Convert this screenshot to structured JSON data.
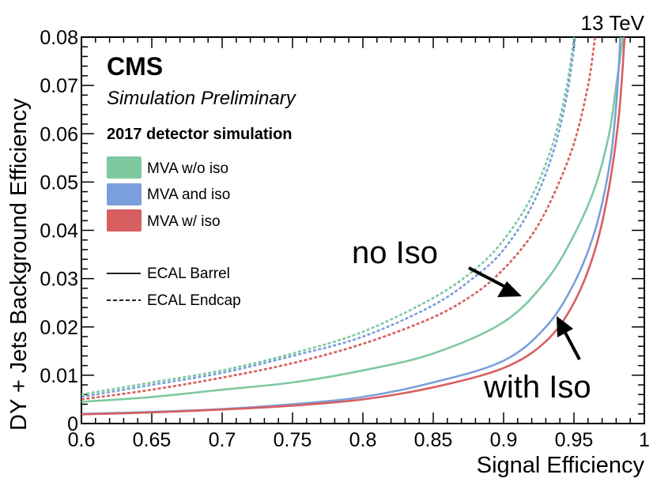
{
  "chart_data": {
    "type": "line",
    "energy_label": "13 TeV",
    "experiment": "CMS",
    "status": "Simulation Preliminary",
    "note": "2017 detector simulation",
    "xlabel": "Signal Efficiency",
    "ylabel": "DY + Jets Background Efficiency",
    "xlim": [
      0.6,
      1.0
    ],
    "ylim": [
      0,
      0.08
    ],
    "xticks": [
      "0.6",
      "0.65",
      "0.7",
      "0.75",
      "0.8",
      "0.85",
      "0.9",
      "0.95",
      "1"
    ],
    "yticks": [
      "0",
      "0.01",
      "0.02",
      "0.03",
      "0.04",
      "0.05",
      "0.06",
      "0.07",
      "0.08"
    ],
    "legend_placement": "top-left",
    "legend": {
      "colors": [
        {
          "label": "MVA w/o iso",
          "color": "#7ec9a0"
        },
        {
          "label": "MVA and iso",
          "color": "#7b9fdb"
        },
        {
          "label": "MVA w/ iso",
          "color": "#d75f5f"
        }
      ],
      "styles": [
        {
          "label": "ECAL Barrel",
          "dash": "solid"
        },
        {
          "label": "ECAL Endcap",
          "dash": "dashed"
        }
      ]
    },
    "annotations": [
      {
        "text": "no Iso",
        "x": 0.9,
        "y": 0.0335,
        "arrow_to": [
          0.92,
          0.0255
        ]
      },
      {
        "text": "with Iso",
        "x": 0.945,
        "y": 0.0075,
        "arrow_to": [
          0.945,
          0.0205
        ]
      }
    ],
    "series": [
      {
        "name": "MVA w/o iso",
        "region": "ECAL Barrel",
        "color": "#7ec9a0",
        "dash": "solid",
        "x": [
          0.6,
          0.65,
          0.7,
          0.75,
          0.8,
          0.85,
          0.9,
          0.93,
          0.95,
          0.965,
          0.975,
          0.98,
          0.985
        ],
        "y": [
          0.0045,
          0.0055,
          0.007,
          0.0085,
          0.011,
          0.0145,
          0.021,
          0.0295,
          0.039,
          0.049,
          0.06,
          0.07,
          0.08
        ]
      },
      {
        "name": "MVA and iso",
        "region": "ECAL Barrel",
        "color": "#7b9fdb",
        "dash": "solid",
        "x": [
          0.6,
          0.65,
          0.7,
          0.75,
          0.8,
          0.85,
          0.9,
          0.93,
          0.95,
          0.965,
          0.975,
          0.98,
          0.983
        ],
        "y": [
          0.002,
          0.0024,
          0.003,
          0.004,
          0.0055,
          0.0085,
          0.013,
          0.02,
          0.029,
          0.04,
          0.053,
          0.066,
          0.08
        ]
      },
      {
        "name": "MVA w/ iso",
        "region": "ECAL Barrel",
        "color": "#d75f5f",
        "dash": "solid",
        "x": [
          0.6,
          0.65,
          0.7,
          0.75,
          0.8,
          0.85,
          0.9,
          0.93,
          0.95,
          0.965,
          0.975,
          0.982,
          0.986
        ],
        "y": [
          0.0019,
          0.0023,
          0.0029,
          0.0037,
          0.005,
          0.0075,
          0.0115,
          0.017,
          0.025,
          0.036,
          0.049,
          0.064,
          0.08
        ]
      },
      {
        "name": "MVA w/o iso",
        "region": "ECAL Endcap",
        "color": "#7ec9a0",
        "dash": "dashed",
        "x": [
          0.6,
          0.65,
          0.7,
          0.75,
          0.8,
          0.85,
          0.88,
          0.9,
          0.92,
          0.935,
          0.945,
          0.95
        ],
        "y": [
          0.006,
          0.0085,
          0.011,
          0.0145,
          0.019,
          0.026,
          0.032,
          0.038,
          0.047,
          0.058,
          0.07,
          0.08
        ]
      },
      {
        "name": "MVA and iso",
        "region": "ECAL Endcap",
        "color": "#7b9fdb",
        "dash": "dashed",
        "x": [
          0.6,
          0.65,
          0.7,
          0.75,
          0.8,
          0.85,
          0.88,
          0.9,
          0.92,
          0.935,
          0.945,
          0.951
        ],
        "y": [
          0.0055,
          0.008,
          0.0105,
          0.014,
          0.018,
          0.0245,
          0.0305,
          0.036,
          0.045,
          0.056,
          0.068,
          0.08
        ]
      },
      {
        "name": "MVA w/ iso",
        "region": "ECAL Endcap",
        "color": "#d75f5f",
        "dash": "dashed",
        "x": [
          0.6,
          0.65,
          0.7,
          0.75,
          0.8,
          0.85,
          0.88,
          0.9,
          0.92,
          0.935,
          0.95,
          0.96,
          0.965
        ],
        "y": [
          0.005,
          0.007,
          0.0095,
          0.0125,
          0.0165,
          0.022,
          0.027,
          0.032,
          0.039,
          0.047,
          0.058,
          0.07,
          0.08
        ]
      }
    ]
  }
}
